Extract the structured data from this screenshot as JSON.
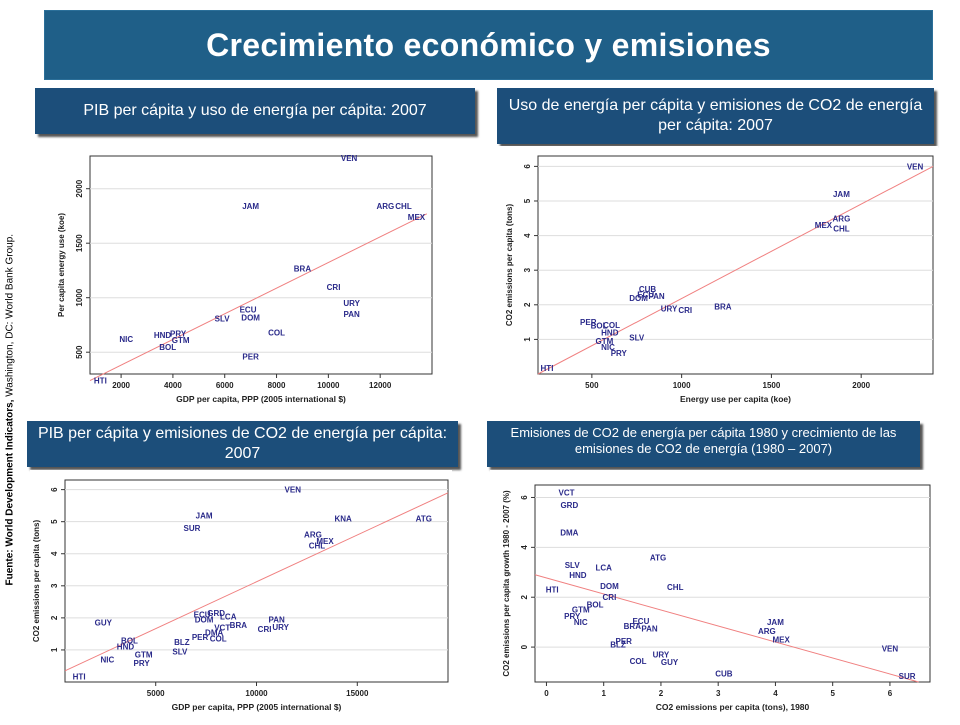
{
  "title": "Crecimiento económico y emisiones",
  "source_bold": "Fuente: World Development Indicators,",
  "source_rest": " Washington, DC: World Bank Group.",
  "colors": {
    "title_bg": "#1f5f88",
    "subtitle_bg": "#1c4e7a",
    "label": "#2a2a8a",
    "fit": "#f08080",
    "axis": "#333333",
    "grid": "#dddddd"
  },
  "chart_data": [
    {
      "type": "scatter",
      "title": "PIB per cápita  y uso de energía per cápita: 2007",
      "xlabel": "GDP per capita, PPP (2005 international $)",
      "ylabel": "Per capita energy use (koe)",
      "xlim": [
        800,
        14000
      ],
      "ylim": [
        300,
        2300
      ],
      "xticks": [
        2000,
        4000,
        6000,
        8000,
        10000,
        12000
      ],
      "xtick_labels": [
        "2000",
        "4000",
        "6000",
        "8000",
        "10000",
        "12000"
      ],
      "yticks": [
        500,
        1000,
        1500,
        2000
      ],
      "ytick_labels": [
        "500",
        "1000",
        "1500",
        "2000"
      ],
      "fit_line": [
        [
          800,
          240
        ],
        [
          13800,
          1770
        ]
      ],
      "points": [
        {
          "label": "VEN",
          "x": 10800,
          "y": 2280
        },
        {
          "label": "JAM",
          "x": 7000,
          "y": 1840
        },
        {
          "label": "ARG",
          "x": 12200,
          "y": 1840
        },
        {
          "label": "CHL",
          "x": 12900,
          "y": 1840
        },
        {
          "label": "MEX",
          "x": 13400,
          "y": 1740
        },
        {
          "label": "BRA",
          "x": 9000,
          "y": 1270
        },
        {
          "label": "CRI",
          "x": 10200,
          "y": 1100
        },
        {
          "label": "URY",
          "x": 10900,
          "y": 950
        },
        {
          "label": "PAN",
          "x": 10900,
          "y": 850
        },
        {
          "label": "ECU",
          "x": 6900,
          "y": 890
        },
        {
          "label": "DOM",
          "x": 7000,
          "y": 820
        },
        {
          "label": "SLV",
          "x": 5900,
          "y": 810
        },
        {
          "label": "COL",
          "x": 8000,
          "y": 680
        },
        {
          "label": "PER",
          "x": 7000,
          "y": 460
        },
        {
          "label": "NIC",
          "x": 2200,
          "y": 620
        },
        {
          "label": "HND",
          "x": 3600,
          "y": 660
        },
        {
          "label": "PRY",
          "x": 4200,
          "y": 670
        },
        {
          "label": "GTM",
          "x": 4300,
          "y": 610
        },
        {
          "label": "BOL",
          "x": 3800,
          "y": 550
        },
        {
          "label": "HTI",
          "x": 1200,
          "y": 240
        }
      ]
    },
    {
      "type": "scatter",
      "title": "Uso de energía per cápita y emisiones de CO2 de energía per cápita:  2007",
      "xlabel": "Energy use per capita (koe)",
      "ylabel": "CO2 emissions per capita (tons)",
      "xlim": [
        200,
        2400
      ],
      "ylim": [
        0,
        6.3
      ],
      "xticks": [
        500,
        1000,
        1500,
        2000
      ],
      "xtick_labels": [
        "500",
        "1000",
        "1500",
        "2000"
      ],
      "yticks": [
        1,
        2,
        3,
        4,
        5,
        6
      ],
      "ytick_labels": [
        "1",
        "2",
        "3",
        "4",
        "5",
        "6"
      ],
      "fit_line": [
        [
          200,
          0.0
        ],
        [
          2400,
          6.0
        ]
      ],
      "points": [
        {
          "label": "VEN",
          "x": 2300,
          "y": 6.0
        },
        {
          "label": "JAM",
          "x": 1890,
          "y": 5.2
        },
        {
          "label": "ARG",
          "x": 1890,
          "y": 4.5
        },
        {
          "label": "MEX",
          "x": 1790,
          "y": 4.3
        },
        {
          "label": "CHL",
          "x": 1890,
          "y": 4.2
        },
        {
          "label": "CUB",
          "x": 810,
          "y": 2.45
        },
        {
          "label": "ECU",
          "x": 800,
          "y": 2.3
        },
        {
          "label": "PAN",
          "x": 860,
          "y": 2.25
        },
        {
          "label": "DOM",
          "x": 760,
          "y": 2.2
        },
        {
          "label": "URY",
          "x": 930,
          "y": 1.9
        },
        {
          "label": "CRI",
          "x": 1020,
          "y": 1.85
        },
        {
          "label": "BRA",
          "x": 1230,
          "y": 1.95
        },
        {
          "label": "PER",
          "x": 480,
          "y": 1.5
        },
        {
          "label": "BOL",
          "x": 540,
          "y": 1.4
        },
        {
          "label": "COL",
          "x": 610,
          "y": 1.42
        },
        {
          "label": "HND",
          "x": 600,
          "y": 1.2
        },
        {
          "label": "SLV",
          "x": 750,
          "y": 1.05
        },
        {
          "label": "GTM",
          "x": 570,
          "y": 0.95
        },
        {
          "label": "NIC",
          "x": 590,
          "y": 0.78
        },
        {
          "label": "PRY",
          "x": 650,
          "y": 0.6
        },
        {
          "label": "HTI",
          "x": 250,
          "y": 0.17
        }
      ]
    },
    {
      "type": "scatter",
      "title": "PIB per cápita y emisiones de CO2 de energía per cápita: 2007",
      "xlabel": "GDP per capita, PPP (2005 international $)",
      "ylabel": "CO2 emissions per capita (tons)",
      "xlim": [
        500,
        19500
      ],
      "ylim": [
        0,
        6.3
      ],
      "xticks": [
        5000,
        10000,
        15000
      ],
      "xtick_labels": [
        "5000",
        "10000",
        "15000"
      ],
      "yticks": [
        1,
        2,
        3,
        4,
        5,
        6
      ],
      "ytick_labels": [
        "1",
        "2",
        "3",
        "4",
        "5",
        "6"
      ],
      "fit_line": [
        [
          500,
          0.35
        ],
        [
          19500,
          5.9
        ]
      ],
      "points": [
        {
          "label": "VEN",
          "x": 11800,
          "y": 6.0
        },
        {
          "label": "JAM",
          "x": 7400,
          "y": 5.2
        },
        {
          "label": "SUR",
          "x": 6800,
          "y": 4.8
        },
        {
          "label": "KNA",
          "x": 14300,
          "y": 5.1
        },
        {
          "label": "ATG",
          "x": 18300,
          "y": 5.1
        },
        {
          "label": "ARG",
          "x": 12800,
          "y": 4.6
        },
        {
          "label": "MEX",
          "x": 13400,
          "y": 4.4
        },
        {
          "label": "CHL",
          "x": 13000,
          "y": 4.25
        },
        {
          "label": "GUY",
          "x": 2400,
          "y": 1.85
        },
        {
          "label": "ECU",
          "x": 7300,
          "y": 2.1
        },
        {
          "label": "GRD",
          "x": 8000,
          "y": 2.15
        },
        {
          "label": "DOM",
          "x": 7400,
          "y": 1.95
        },
        {
          "label": "LCA",
          "x": 8600,
          "y": 2.05
        },
        {
          "label": "PAN",
          "x": 11000,
          "y": 1.95
        },
        {
          "label": "VCT",
          "x": 8300,
          "y": 1.7
        },
        {
          "label": "BRA",
          "x": 9100,
          "y": 1.78
        },
        {
          "label": "CRI",
          "x": 10400,
          "y": 1.65
        },
        {
          "label": "URY",
          "x": 11200,
          "y": 1.72
        },
        {
          "label": "DMA",
          "x": 7900,
          "y": 1.55
        },
        {
          "label": "PER",
          "x": 7200,
          "y": 1.4
        },
        {
          "label": "COL",
          "x": 8100,
          "y": 1.35
        },
        {
          "label": "BLZ",
          "x": 6300,
          "y": 1.25
        },
        {
          "label": "SLV",
          "x": 6200,
          "y": 0.95
        },
        {
          "label": "BOL",
          "x": 3700,
          "y": 1.3
        },
        {
          "label": "HND",
          "x": 3500,
          "y": 1.1
        },
        {
          "label": "GTM",
          "x": 4400,
          "y": 0.85
        },
        {
          "label": "PRY",
          "x": 4300,
          "y": 0.6
        },
        {
          "label": "NIC",
          "x": 2600,
          "y": 0.7
        },
        {
          "label": "HTI",
          "x": 1200,
          "y": 0.17
        }
      ]
    },
    {
      "type": "scatter",
      "title": "Emisiones de CO2 de energía per cápita 1980 y crecimiento de las emisiones de CO2 de energía (1980 – 2007)",
      "xlabel": "CO2 emissions per capita (tons), 1980",
      "ylabel": "CO2 emissions per capita growth 1980 - 2007 (%)",
      "xlim": [
        -0.2,
        6.7
      ],
      "ylim": [
        -1.4,
        6.5
      ],
      "xticks": [
        0,
        1,
        2,
        3,
        4,
        5,
        6
      ],
      "xtick_labels": [
        "0",
        "1",
        "2",
        "3",
        "4",
        "5",
        "6"
      ],
      "yticks": [
        0,
        2,
        4,
        6
      ],
      "ytick_labels": [
        "0",
        "2",
        "4",
        "6"
      ],
      "fit_line": [
        [
          -0.2,
          2.9
        ],
        [
          6.5,
          -1.4
        ]
      ],
      "points": [
        {
          "label": "VCT",
          "x": 0.35,
          "y": 6.2
        },
        {
          "label": "GRD",
          "x": 0.4,
          "y": 5.7
        },
        {
          "label": "DMA",
          "x": 0.4,
          "y": 4.6
        },
        {
          "label": "ATG",
          "x": 1.95,
          "y": 3.6
        },
        {
          "label": "SLV",
          "x": 0.45,
          "y": 3.3
        },
        {
          "label": "LCA",
          "x": 1.0,
          "y": 3.2
        },
        {
          "label": "HND",
          "x": 0.55,
          "y": 2.9
        },
        {
          "label": "DOM",
          "x": 1.1,
          "y": 2.45
        },
        {
          "label": "CHL",
          "x": 2.25,
          "y": 2.4
        },
        {
          "label": "HTI",
          "x": 0.1,
          "y": 2.3
        },
        {
          "label": "CRI",
          "x": 1.1,
          "y": 2.0
        },
        {
          "label": "BOL",
          "x": 0.85,
          "y": 1.7
        },
        {
          "label": "GTM",
          "x": 0.6,
          "y": 1.5
        },
        {
          "label": "PRY",
          "x": 0.45,
          "y": 1.25
        },
        {
          "label": "NIC",
          "x": 0.6,
          "y": 1.0
        },
        {
          "label": "ECU",
          "x": 1.65,
          "y": 1.05
        },
        {
          "label": "BRA",
          "x": 1.5,
          "y": 0.85
        },
        {
          "label": "PAN",
          "x": 1.8,
          "y": 0.75
        },
        {
          "label": "PER",
          "x": 1.35,
          "y": 0.25
        },
        {
          "label": "BLZ",
          "x": 1.25,
          "y": 0.1
        },
        {
          "label": "URY",
          "x": 2.0,
          "y": -0.3
        },
        {
          "label": "COL",
          "x": 1.6,
          "y": -0.55
        },
        {
          "label": "GUY",
          "x": 2.15,
          "y": -0.6
        },
        {
          "label": "CUB",
          "x": 3.1,
          "y": -1.05
        },
        {
          "label": "JAM",
          "x": 4.0,
          "y": 1.0
        },
        {
          "label": "ARG",
          "x": 3.85,
          "y": 0.65
        },
        {
          "label": "MEX",
          "x": 4.1,
          "y": 0.3
        },
        {
          "label": "VEN",
          "x": 6.0,
          "y": -0.05
        },
        {
          "label": "SUR",
          "x": 6.3,
          "y": -1.15
        }
      ]
    }
  ]
}
